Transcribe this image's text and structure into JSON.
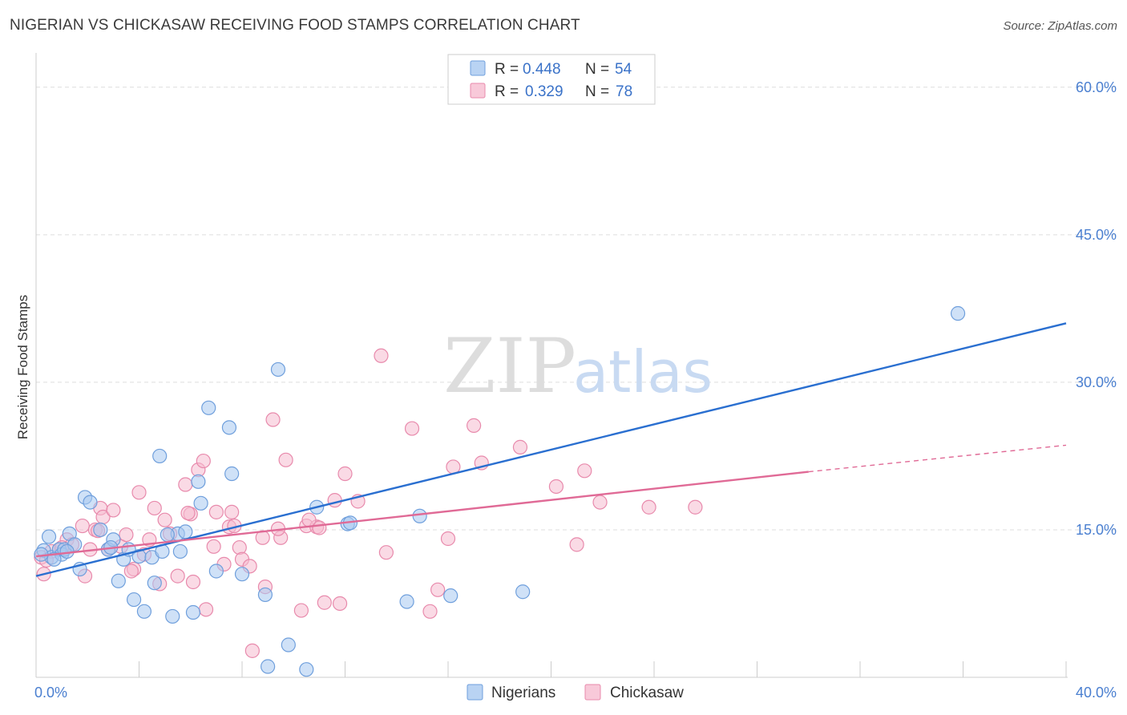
{
  "title": "NIGERIAN VS CHICKASAW RECEIVING FOOD STAMPS CORRELATION CHART",
  "source": "Source: ZipAtlas.com",
  "watermark": {
    "zip": "ZIP",
    "atlas": "atlas"
  },
  "colors": {
    "nigerians_fill": "#a8c8f0",
    "nigerians_stroke": "#6f9fdc",
    "nigerians_line": "#2a6fd0",
    "chickasaw_fill": "#f6bcd0",
    "chickasaw_stroke": "#e88aac",
    "chickasaw_line": "#e06a96",
    "tick_label": "#4a7fd0",
    "grid": "#dddddd"
  },
  "legend": {
    "rows": [
      {
        "r_label": "R =",
        "r_value": "0.448",
        "n_label": "N =",
        "n_value": "54",
        "series": "nigerians"
      },
      {
        "r_label": "R =",
        "r_value": "0.329",
        "n_label": "N =",
        "n_value": "78",
        "series": "chickasaw"
      }
    ]
  },
  "chart_data": {
    "type": "scatter",
    "title": "NIGERIAN VS CHICKASAW RECEIVING FOOD STAMPS CORRELATION CHART",
    "xlabel": "",
    "ylabel": "Receiving Food Stamps",
    "xlim": [
      0,
      40
    ],
    "ylim": [
      0,
      63
    ],
    "x_tick_labels": [
      {
        "value": 0,
        "label": "0.0%"
      },
      {
        "value": 40,
        "label": "40.0%"
      }
    ],
    "y_tick_labels": [
      {
        "value": 15,
        "label": "15.0%"
      },
      {
        "value": 30,
        "label": "30.0%"
      },
      {
        "value": 45,
        "label": "45.0%"
      },
      {
        "value": 60,
        "label": "60.0%"
      }
    ],
    "y_gridlines": [
      15,
      30,
      45,
      60
    ],
    "x_minor_ticks": [
      0,
      4,
      8,
      12,
      16,
      20,
      24,
      28,
      32,
      36,
      40
    ],
    "legend_position": "top-center",
    "bottom_legend": [
      "Nigerians",
      "Chickasaw"
    ],
    "series": [
      {
        "name": "Nigerians",
        "color_key": "nigerians",
        "points": [
          [
            0.3,
            12.9
          ],
          [
            0.5,
            14.3
          ],
          [
            0.6,
            12.2
          ],
          [
            0.9,
            13.0
          ],
          [
            1.0,
            12.5
          ],
          [
            1.1,
            13.0
          ],
          [
            1.3,
            14.6
          ],
          [
            1.5,
            13.5
          ],
          [
            1.7,
            11.0
          ],
          [
            1.9,
            18.3
          ],
          [
            2.5,
            15.0
          ],
          [
            2.8,
            13.0
          ],
          [
            3.0,
            14.0
          ],
          [
            3.2,
            9.8
          ],
          [
            3.4,
            12.0
          ],
          [
            3.6,
            13.0
          ],
          [
            3.8,
            7.9
          ],
          [
            4.0,
            12.3
          ],
          [
            4.2,
            6.7
          ],
          [
            4.5,
            12.2
          ],
          [
            4.6,
            9.6
          ],
          [
            4.8,
            22.5
          ],
          [
            4.9,
            12.8
          ],
          [
            5.3,
            6.2
          ],
          [
            5.5,
            14.6
          ],
          [
            5.6,
            12.8
          ],
          [
            5.8,
            14.8
          ],
          [
            6.1,
            6.6
          ],
          [
            6.3,
            19.9
          ],
          [
            6.4,
            17.7
          ],
          [
            6.7,
            27.4
          ],
          [
            7.0,
            10.8
          ],
          [
            7.5,
            25.4
          ],
          [
            7.6,
            20.7
          ],
          [
            8.0,
            10.5
          ],
          [
            8.9,
            8.4
          ],
          [
            9.0,
            1.1
          ],
          [
            9.4,
            31.3
          ],
          [
            9.8,
            3.3
          ],
          [
            10.5,
            0.8
          ],
          [
            10.9,
            17.3
          ],
          [
            12.1,
            15.6
          ],
          [
            14.4,
            7.7
          ],
          [
            14.9,
            16.4
          ],
          [
            16.1,
            8.3
          ],
          [
            18.9,
            8.7
          ],
          [
            35.8,
            37.0
          ],
          [
            0.2,
            12.5
          ],
          [
            0.7,
            12.0
          ],
          [
            1.2,
            12.8
          ],
          [
            2.1,
            17.8
          ],
          [
            2.9,
            13.2
          ],
          [
            5.1,
            14.5
          ],
          [
            12.2,
            15.7
          ]
        ],
        "trend": {
          "x0": 0.0,
          "y0": 10.3,
          "x1": 40.0,
          "y1": 36.0
        }
      },
      {
        "name": "Chickasaw",
        "color_key": "chickasaw",
        "points": [
          [
            0.2,
            12.2
          ],
          [
            0.3,
            10.5
          ],
          [
            0.6,
            12.8
          ],
          [
            0.9,
            13.0
          ],
          [
            1.2,
            14.0
          ],
          [
            1.4,
            13.5
          ],
          [
            1.8,
            15.4
          ],
          [
            1.9,
            10.3
          ],
          [
            2.1,
            13.0
          ],
          [
            2.3,
            15.0
          ],
          [
            2.5,
            17.2
          ],
          [
            2.6,
            16.3
          ],
          [
            2.8,
            13.0
          ],
          [
            3.0,
            17.0
          ],
          [
            3.3,
            13.3
          ],
          [
            3.5,
            14.5
          ],
          [
            3.8,
            11.0
          ],
          [
            4.0,
            18.8
          ],
          [
            4.2,
            12.5
          ],
          [
            4.4,
            14.0
          ],
          [
            4.6,
            17.2
          ],
          [
            4.8,
            9.5
          ],
          [
            5.0,
            16.0
          ],
          [
            5.2,
            14.6
          ],
          [
            5.5,
            10.3
          ],
          [
            5.8,
            19.6
          ],
          [
            6.0,
            16.6
          ],
          [
            6.1,
            9.7
          ],
          [
            6.3,
            21.1
          ],
          [
            6.5,
            22.0
          ],
          [
            6.6,
            6.9
          ],
          [
            6.9,
            13.3
          ],
          [
            7.0,
            16.8
          ],
          [
            7.3,
            11.5
          ],
          [
            7.5,
            15.3
          ],
          [
            7.6,
            16.8
          ],
          [
            7.9,
            13.2
          ],
          [
            8.0,
            12.0
          ],
          [
            8.3,
            11.3
          ],
          [
            8.4,
            2.7
          ],
          [
            8.8,
            14.2
          ],
          [
            8.9,
            9.2
          ],
          [
            9.2,
            26.2
          ],
          [
            9.5,
            14.2
          ],
          [
            9.7,
            22.1
          ],
          [
            10.3,
            6.8
          ],
          [
            10.5,
            15.4
          ],
          [
            10.9,
            15.3
          ],
          [
            11.0,
            15.2
          ],
          [
            11.2,
            7.6
          ],
          [
            11.6,
            18.0
          ],
          [
            11.8,
            7.5
          ],
          [
            12.0,
            20.7
          ],
          [
            12.5,
            17.9
          ],
          [
            13.4,
            32.7
          ],
          [
            13.6,
            12.7
          ],
          [
            14.6,
            25.3
          ],
          [
            15.3,
            6.7
          ],
          [
            15.6,
            8.9
          ],
          [
            16.0,
            14.1
          ],
          [
            16.2,
            21.4
          ],
          [
            17.0,
            25.6
          ],
          [
            17.3,
            21.8
          ],
          [
            18.8,
            23.4
          ],
          [
            20.2,
            19.4
          ],
          [
            21.0,
            13.5
          ],
          [
            21.3,
            21.0
          ],
          [
            21.9,
            17.8
          ],
          [
            23.8,
            17.3
          ],
          [
            25.6,
            17.3
          ],
          [
            0.4,
            11.9
          ],
          [
            1.0,
            13.2
          ],
          [
            3.7,
            10.8
          ],
          [
            5.9,
            16.7
          ],
          [
            7.7,
            15.4
          ],
          [
            9.4,
            15.1
          ],
          [
            10.6,
            16.0
          ],
          [
            2.4,
            14.9
          ]
        ],
        "trend": {
          "x0": 0.0,
          "y0": 12.3,
          "x1": 30.0,
          "y1": 20.9
        },
        "trend_dashed_extension": {
          "x0": 30.0,
          "y0": 20.9,
          "x1": 40.0,
          "y1": 23.6
        }
      }
    ]
  }
}
